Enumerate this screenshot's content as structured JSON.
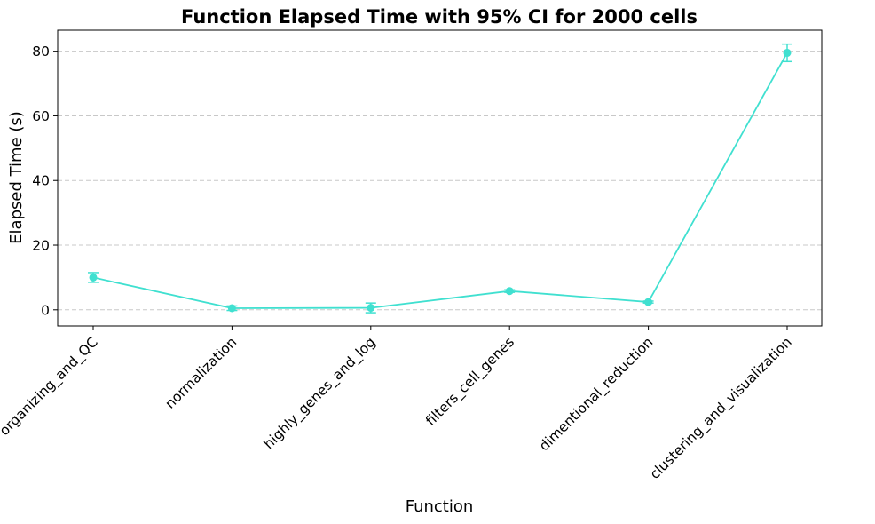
{
  "chart_data": {
    "type": "line",
    "title": "Function Elapsed Time with 95% CI for 2000 cells",
    "xlabel": "Function",
    "ylabel": "Elapsed Time (s)",
    "categories": [
      "organizing_and_QC",
      "normalization",
      "highly_genes_and_log",
      "filters_cell_genes",
      "dimentional_reduction",
      "clustering_and_visualization"
    ],
    "series": [
      {
        "values": [
          10.0,
          0.5,
          0.6,
          5.8,
          2.4,
          79.5
        ],
        "ci_low": [
          8.5,
          -0.2,
          -0.9,
          5.4,
          2.1,
          76.8
        ],
        "ci_high": [
          11.5,
          1.2,
          2.1,
          6.2,
          2.7,
          82.2
        ]
      }
    ],
    "ylim": [
      -5,
      86.5
    ],
    "yticks": [
      0,
      20,
      40,
      60,
      80
    ],
    "grid": "y-dashed",
    "color": "#40e0d0"
  }
}
